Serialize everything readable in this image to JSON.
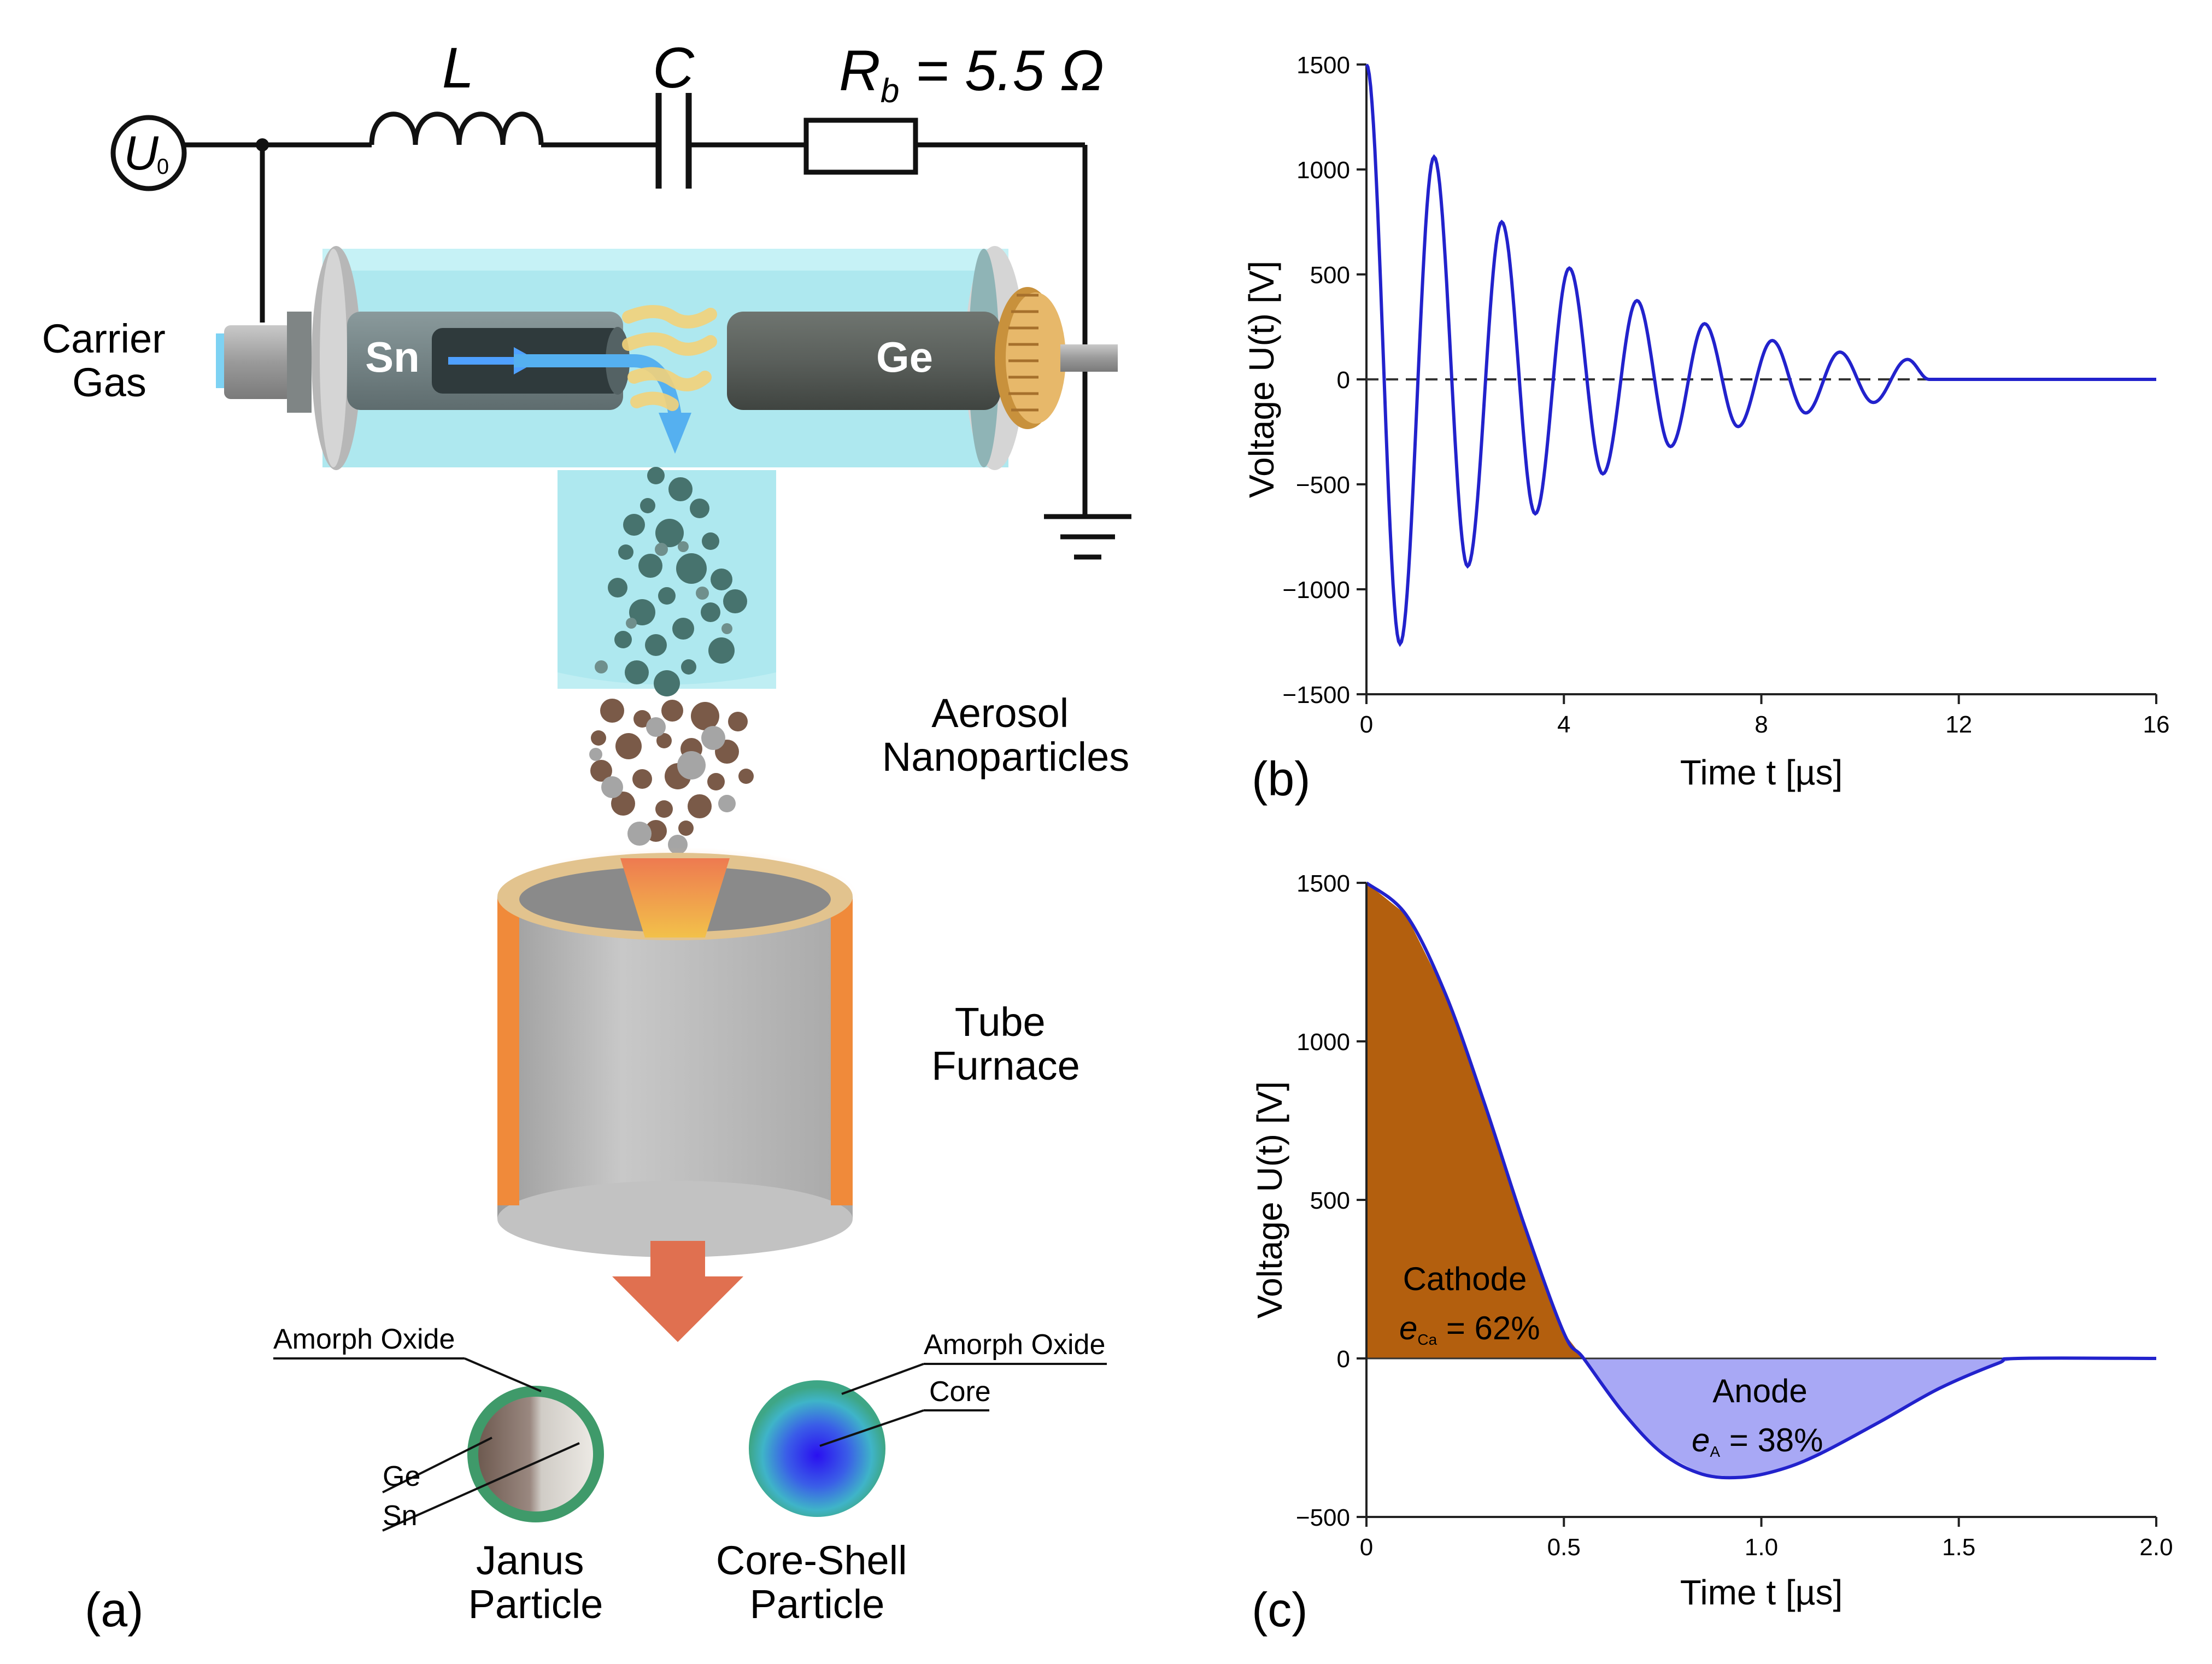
{
  "panel_a": {
    "label": "(a)",
    "circuit": {
      "source_symbol": "U",
      "source_subscript": "0",
      "inductor_label": "L",
      "capacitor_label": "C",
      "resistor_label_main": "R",
      "resistor_label_sub": "b",
      "resistor_value": " = 5.5 Ω"
    },
    "carrier_gas_line1": "Carrier",
    "carrier_gas_line2": "Gas",
    "electrode_left": "Sn",
    "electrode_right": "Ge",
    "aerosol_line1": "Aerosol",
    "aerosol_line2": "Nanoparticles",
    "furnace_line1": "Tube",
    "furnace_line2": "Furnace",
    "janus": {
      "oxide_label": "Amorph Oxide",
      "ge_label": "Ge",
      "sn_label": "Sn",
      "title_line1": "Janus",
      "title_line2": "Particle"
    },
    "coreshell": {
      "oxide_label": "Amorph Oxide",
      "core_label": "Core",
      "title_line1": "Core-Shell",
      "title_line2": "Particle"
    }
  },
  "chart_data": [
    {
      "panel": "(b)",
      "type": "line",
      "title": "",
      "xlabel": "Time t [µs]",
      "ylabel": "Voltage U(t) [V]",
      "xlim": [
        0,
        16
      ],
      "ylim": [
        -1500,
        1500
      ],
      "xticks": [
        0,
        4,
        8,
        12,
        16
      ],
      "xtick_labels": [
        "0",
        "4",
        "8",
        "12",
        "16"
      ],
      "yticks": [
        1500,
        1000,
        500,
        0,
        -500,
        -1000,
        -1500
      ],
      "ytick_labels": [
        "1500",
        "1000",
        "500",
        "0",
        "−500",
        "−1000",
        "−1500"
      ],
      "zero_line": "dashed",
      "series": [
        {
          "name": "U(t)",
          "color": "#2222cc",
          "x": [
            0,
            0.68,
            1.37,
            2.05,
            2.74,
            3.42,
            4.11,
            4.79,
            5.48,
            6.16,
            6.85,
            7.53,
            8.22,
            8.9,
            9.59,
            10.27,
            10.96,
            11.4,
            16
          ],
          "y": [
            1500,
            -1260,
            1060,
            -890,
            750,
            -640,
            530,
            -450,
            375,
            -320,
            265,
            -225,
            185,
            -160,
            130,
            -110,
            95,
            0,
            0
          ]
        }
      ]
    },
    {
      "panel": "(c)",
      "type": "area",
      "title": "",
      "xlabel": "Time t [µs]",
      "ylabel": "Voltage U(t) [V]",
      "xlim": [
        0,
        2.0
      ],
      "ylim": [
        -500,
        1500
      ],
      "xticks": [
        0,
        0.5,
        1.0,
        1.5,
        2.0
      ],
      "xtick_labels": [
        "0",
        "0.5",
        "1.0",
        "1.5",
        "2.0"
      ],
      "yticks": [
        1500,
        1000,
        500,
        0,
        -500
      ],
      "ytick_labels": [
        "1500",
        "1000",
        "500",
        "0",
        "−500"
      ],
      "series": [
        {
          "name": "U(t)",
          "color": "#2222cc",
          "x": [
            0,
            0.1,
            0.2,
            0.3,
            0.4,
            0.5,
            0.55,
            0.65,
            0.75,
            0.85,
            0.95,
            1.05,
            1.15,
            1.3,
            1.45,
            1.6,
            1.65,
            2.0
          ],
          "y": [
            1500,
            1400,
            1150,
            800,
            420,
            80,
            0,
            -170,
            -300,
            -365,
            -375,
            -350,
            -300,
            -200,
            -95,
            -15,
            0,
            0
          ]
        }
      ],
      "regions": [
        {
          "name": "Cathode",
          "symbol": "e",
          "subscript": "Ca",
          "value": " = 62%",
          "color": "#b35f0e",
          "x_range": [
            0,
            0.55
          ]
        },
        {
          "name": "Anode",
          "symbol": "e",
          "subscript": "A",
          "value": " = 38%",
          "color": "#a8a8f5",
          "x_range": [
            0.55,
            1.65
          ]
        }
      ]
    }
  ],
  "colors": {
    "curve": "#2222cc",
    "cathode_fill": "#b35f0e",
    "anode_fill": "#a8a8f5",
    "tube_glass": "#aee8ef",
    "furnace_orange": "#f08a3a",
    "arrow": "#e07050"
  }
}
